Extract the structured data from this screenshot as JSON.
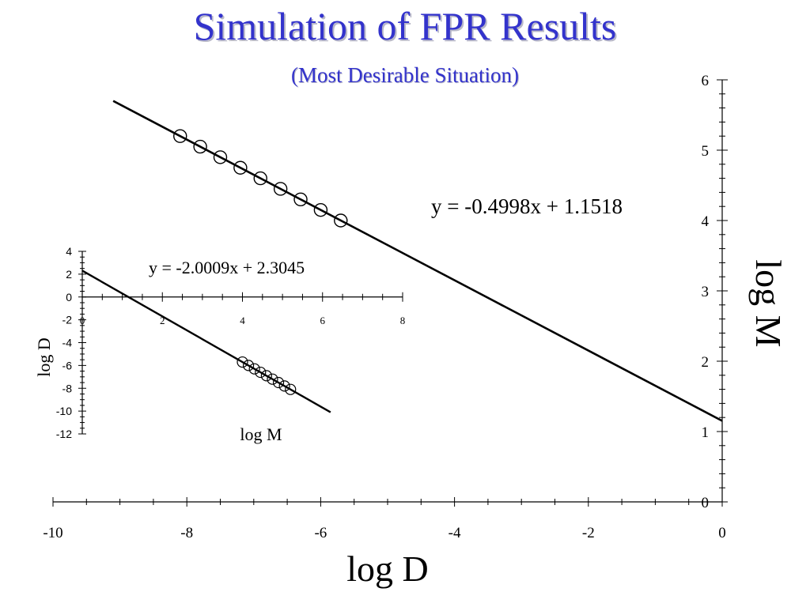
{
  "title": "Simulation of FPR Results",
  "subtitle": "(Most Desirable Situation)",
  "chart_data": [
    {
      "type": "scatter",
      "xlabel": "log D",
      "ylabel": "log M",
      "xlim": [
        -10,
        0
      ],
      "ylim": [
        0,
        6
      ],
      "x_ticks": [
        "-10",
        "-8",
        "-6",
        "-4",
        "-2",
        "0"
      ],
      "y_ticks": [
        "0",
        "1",
        "2",
        "3",
        "4",
        "5",
        "6"
      ],
      "y_axis_side": "right",
      "grid": false,
      "fit_equation": "y = -0.4998x + 1.1518",
      "fit": {
        "slope": -0.4998,
        "intercept": 1.1518,
        "x_range": [
          -9.1,
          0
        ]
      },
      "points": [
        {
          "x": -8.1,
          "y": 5.2
        },
        {
          "x": -7.8,
          "y": 5.05
        },
        {
          "x": -7.5,
          "y": 4.9
        },
        {
          "x": -7.2,
          "y": 4.75
        },
        {
          "x": -6.9,
          "y": 4.6
        },
        {
          "x": -6.6,
          "y": 4.45
        },
        {
          "x": -6.3,
          "y": 4.3
        },
        {
          "x": -6.0,
          "y": 4.15
        },
        {
          "x": -5.7,
          "y": 4.0
        }
      ]
    },
    {
      "type": "scatter",
      "xlabel": "log M",
      "ylabel": "log D",
      "xlim": [
        0,
        8
      ],
      "ylim": [
        -12,
        4
      ],
      "x_ticks": [
        "0",
        "2",
        "4",
        "6",
        "8"
      ],
      "y_ticks": [
        "4",
        "2",
        "0",
        "-2",
        "-4",
        "-6",
        "-8",
        "-10",
        "-12"
      ],
      "grid": false,
      "fit_equation": "y = -2.0009x + 2.3045",
      "fit": {
        "slope": -2.0009,
        "intercept": 2.3045,
        "x_range": [
          0,
          6.2
        ]
      },
      "points": [
        {
          "x": 4.0,
          "y": -5.7
        },
        {
          "x": 4.15,
          "y": -6.0
        },
        {
          "x": 4.3,
          "y": -6.3
        },
        {
          "x": 4.45,
          "y": -6.6
        },
        {
          "x": 4.6,
          "y": -6.9
        },
        {
          "x": 4.75,
          "y": -7.2
        },
        {
          "x": 4.9,
          "y": -7.5
        },
        {
          "x": 5.05,
          "y": -7.8
        },
        {
          "x": 5.2,
          "y": -8.1
        }
      ]
    }
  ]
}
